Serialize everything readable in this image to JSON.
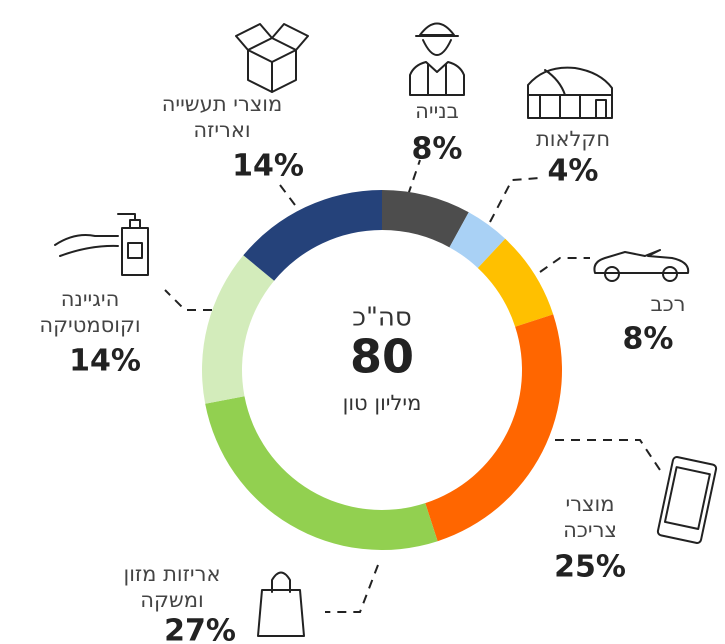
{
  "chart_data": {
    "type": "pie",
    "donut": true,
    "center_text": {
      "top": "סה\"כ",
      "value": "80",
      "bottom": "מיליון טון"
    },
    "categories": [
      [
        "בנייה"
      ],
      [
        "חקלאות"
      ],
      [
        "רכב"
      ],
      [
        "מוצרי",
        "צריכה"
      ],
      [
        "אריזות מזון",
        "ומשקה"
      ],
      [
        "היגיינה",
        "וקוסמטיקה"
      ],
      [
        "מוצרי תעשייה",
        "ואריזה"
      ]
    ],
    "values": [
      8,
      4,
      8,
      25,
      27,
      14,
      14
    ],
    "value_labels": [
      "8%",
      "4%",
      "8%",
      "25%",
      "27%",
      "14%",
      "14%"
    ],
    "colors": [
      "#4d4d4d",
      "#a9d1f5",
      "#ffc000",
      "#ff6600",
      "#92d050",
      "#d3ecbb",
      "#25427a"
    ]
  }
}
